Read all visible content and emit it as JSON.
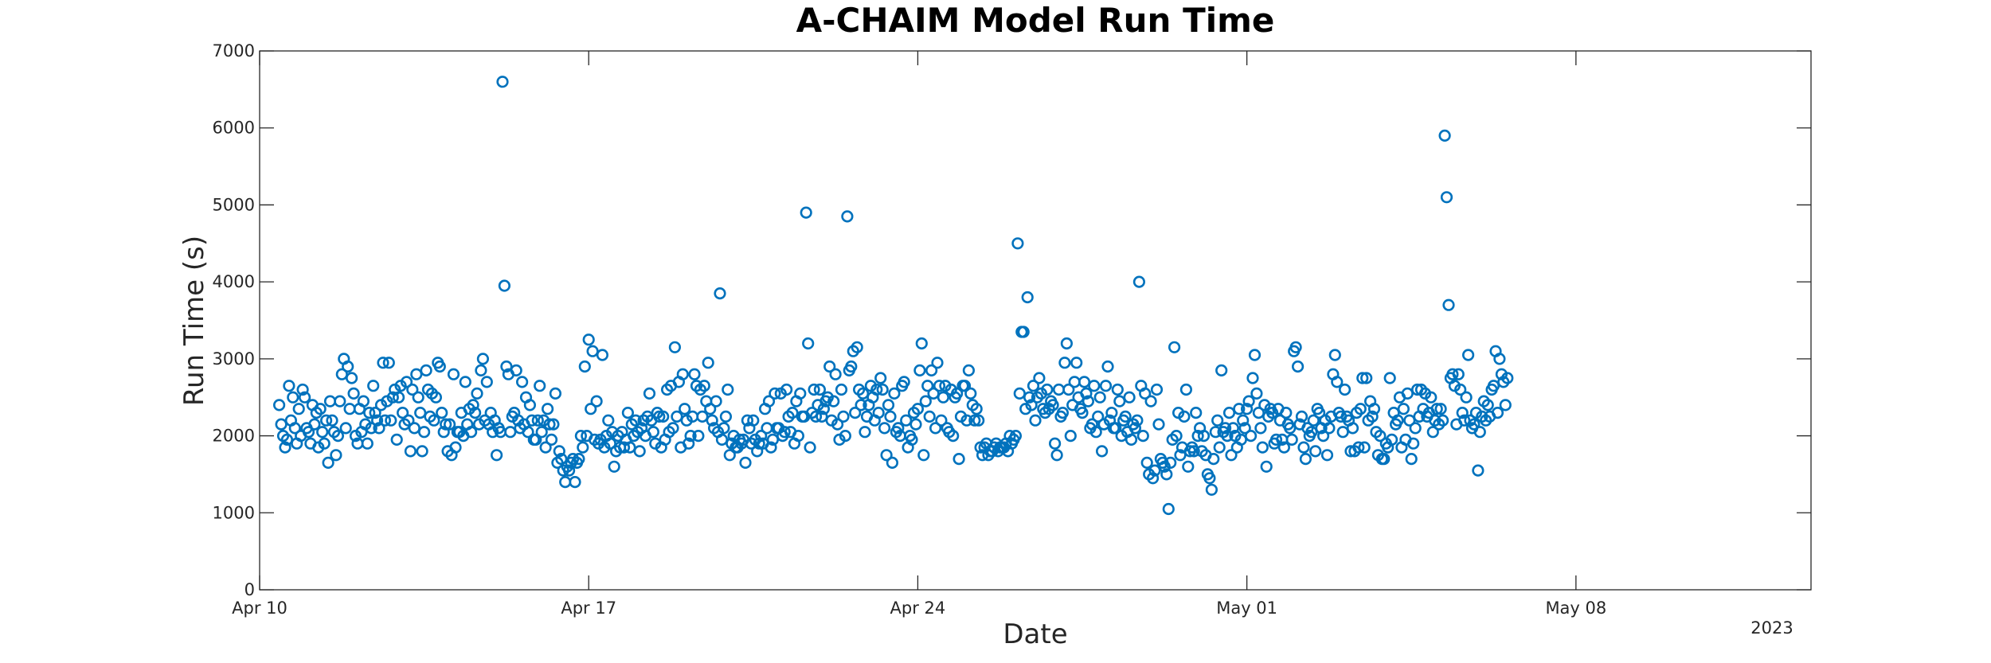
{
  "chart_data": {
    "type": "scatter",
    "title": "A-CHAIM Model Run Time",
    "xlabel": "Date",
    "ylabel": "Run Time (s)",
    "year_label": "2023",
    "xlim": [
      "2023-04-10",
      "2023-05-13"
    ],
    "ylim": [
      0,
      7000
    ],
    "x_ticks": [
      {
        "value": "2023-04-10",
        "label": "Apr 10"
      },
      {
        "value": "2023-04-17",
        "label": "Apr 17"
      },
      {
        "value": "2023-04-24",
        "label": "Apr 24"
      },
      {
        "value": "2023-05-01",
        "label": "May 01"
      },
      {
        "value": "2023-05-08",
        "label": "May 08"
      }
    ],
    "y_ticks": [
      0,
      1000,
      2000,
      3000,
      4000,
      5000,
      6000,
      7000
    ],
    "grid": false,
    "marker": "circle",
    "marker_color": "#0072BD",
    "sampling_interval_minutes": 60,
    "series": [
      {
        "x_start": "2023-04-10 10:00",
        "x_end": "2023-05-10 10:00",
        "values": [
          2400,
          2150,
          2000,
          1850,
          1950,
          2650,
          2200,
          2500,
          2100,
          1900,
          2350,
          2000,
          2600,
          2500,
          2100,
          2050,
          1900,
          2400,
          2150,
          2300,
          1850,
          2350,
          2050,
          1900,
          2200,
          1650,
          2450,
          2200,
          2050,
          1750,
          2000,
          2450,
          2800,
          3000,
          2100,
          2900,
          2350,
          2750,
          2550,
          2000,
          1900,
          2350,
          2050,
          2450,
          2150,
          1900,
          2300,
          2100,
          2650,
          2300,
          2200,
          2100,
          2400,
          2950,
          2200,
          2450,
          2950,
          2200,
          2500,
          2600,
          1950,
          2500,
          2650,
          2300,
          2150,
          2700,
          2200,
          1800,
          2600,
          2100,
          2800,
          2500,
          2300,
          1800,
          2050,
          2850,
          2600,
          2250,
          2550,
          2200,
          2500,
          2950,
          2900,
          2300,
          2050,
          2150,
          1800,
          2150,
          1750,
          2800,
          1850,
          2050,
          2050,
          2300,
          2000,
          2700,
          2150,
          2350,
          2050,
          2400,
          2300,
          2550,
          2150,
          2850,
          3000,
          2200,
          2700,
          2150,
          2300,
          2050,
          2200,
          1750,
          2100,
          2050,
          6600,
          3950,
          2900,
          2800,
          2050,
          2250,
          2300,
          2850,
          2200,
          2100,
          2700,
          2150,
          2500,
          2050,
          2400,
          2200,
          1950,
          1950,
          2200,
          2650,
          2050,
          2200,
          1850,
          2350,
          2150,
          1950,
          2150,
          2550,
          1650,
          1800,
          1700,
          1550,
          1400,
          1600,
          1550,
          1650,
          1700,
          1400,
          1650,
          1700,
          2000,
          1850,
          2900,
          2000,
          3250,
          2350,
          3100,
          1950,
          2450,
          1900,
          1950,
          3050,
          1850,
          2000,
          2200,
          1900,
          2050,
          1600,
          1800,
          2000,
          1850,
          2050,
          1850,
          1950,
          2300,
          1850,
          2150,
          2000,
          2200,
          2050,
          1800,
          2100,
          2200,
          2000,
          2250,
          2550,
          2200,
          2050,
          1900,
          2300,
          2250,
          1850,
          2250,
          1950,
          2600,
          2050,
          2650,
          2100,
          3150,
          2250,
          2700,
          1850,
          2800,
          2350,
          2200,
          1900,
          2000,
          2250,
          2800,
          2650,
          2000,
          2600,
          2250,
          2650,
          2450,
          2950,
          2350,
          2200,
          2100,
          2450,
          2050,
          3850,
          1950,
          2100,
          2250,
          2600,
          1750,
          1900,
          2000,
          1850,
          1850,
          1950,
          1900,
          1950,
          1650,
          2200,
          2100,
          1900,
          2200,
          1950,
          1800,
          1900,
          2000,
          1900,
          2350,
          2100,
          2450,
          1850,
          1950,
          2550,
          2100,
          2100,
          2550,
          2000,
          2050,
          2600,
          2250,
          2050,
          2300,
          1900,
          2450,
          2000,
          2550,
          2250,
          2250,
          4900,
          3200,
          1850,
          2300,
          2600,
          2250,
          2400,
          2600,
          2250,
          2350,
          2450,
          2500,
          2900,
          2200,
          2450,
          2800,
          2150,
          1950,
          2600,
          2250,
          2000,
          4850,
          2850,
          2900,
          3100,
          2300,
          3150,
          2600,
          2400,
          2550,
          2050,
          2250,
          2400,
          2650,
          2500,
          2200,
          2600,
          2300,
          2750,
          2600,
          2100,
          1750,
          2400,
          2250,
          1650,
          2550,
          2050,
          2100,
          2000,
          2650,
          2700,
          2200,
          1850,
          2000,
          1950,
          2300,
          2150,
          2350,
          2850,
          3200,
          1750,
          2450,
          2650,
          2250,
          2850,
          2550,
          2100,
          2950,
          2650,
          2200,
          2500,
          2650,
          2100,
          2050,
          2600,
          2000,
          2500,
          2550,
          1700,
          2250,
          2650,
          2650,
          2200,
          2850,
          2550,
          2400,
          2200,
          2350,
          2200,
          1850,
          1750,
          1850,
          1900,
          1750,
          1800,
          1800,
          1850,
          1900,
          1800,
          1850,
          1850,
          1850,
          1900,
          1800,
          2000,
          1900,
          1950,
          2000,
          4500,
          2550,
          3350,
          3350,
          2350,
          3800,
          2500,
          2400,
          2650,
          2200,
          2500,
          2750,
          2550,
          2350,
          2300,
          2600,
          2350,
          2450,
          2400,
          1900,
          1750,
          2600,
          2250,
          2300,
          2950,
          3200,
          2600,
          2000,
          2400,
          2700,
          2950,
          2500,
          2350,
          2300,
          2700,
          2550,
          2450,
          2100,
          2150,
          2650,
          2050,
          2250,
          2500,
          1800,
          2150,
          2650,
          2900,
          2200,
          2300,
          2100,
          2100,
          2600,
          2450,
          2000,
          2200,
          2250,
          2050,
          2500,
          1950,
          2150,
          2100,
          2200,
          4000,
          2650,
          2000,
          2550,
          1650,
          1500,
          2450,
          1450,
          1550,
          2600,
          2150,
          1700,
          1650,
          1600,
          1500,
          1050,
          1650,
          1950,
          3150,
          2000,
          2300,
          1750,
          1850,
          2250,
          2600,
          1600,
          1800,
          1850,
          1800,
          2300,
          2000,
          2100,
          1800,
          2000,
          1750,
          1500,
          1450,
          1300,
          1700,
          2050,
          2200,
          1850,
          2850,
          2050,
          2100,
          2000,
          2300,
          1750,
          2100,
          2000,
          1850,
          2350,
          1950,
          2200,
          2100,
          2350,
          2450,
          2000,
          2750,
          3050,
          2550,
          2300,
          2100,
          1850,
          2400,
          1600,
          2250,
          2350,
          2300,
          1900,
          1950,
          2350,
          2200,
          1950,
          1850,
          2300,
          2150,
          2100,
          1950,
          3100,
          3150,
          2900,
          2150,
          2250,
          1850,
          1700,
          2100,
          2000,
          2050,
          2200,
          1800,
          2350,
          2300,
          2100,
          2000,
          2200,
          1750,
          2100,
          2250,
          2800,
          3050,
          2700,
          2300,
          2250,
          2050,
          2600,
          2250,
          2200,
          1800,
          2100,
          1800,
          2300,
          1850,
          2350,
          2750,
          1850,
          2750,
          2200,
          2450,
          2250,
          2350,
          2050,
          1750,
          2000,
          1700,
          1700,
          1900,
          1850,
          2750,
          1950,
          2300,
          2150,
          2200,
          2500,
          1850,
          2350,
          1950,
          2550,
          2200,
          1700,
          1900,
          2100,
          2600,
          2250,
          2600,
          2350,
          2550,
          2250,
          2300,
          2500,
          2050,
          2200,
          2350,
          2150,
          2350,
          2200,
          5900,
          5100,
          3700,
          2750,
          2800,
          2650,
          2150,
          2800,
          2600,
          2300,
          2200,
          2500,
          3050,
          2200,
          2100,
          2150,
          2300,
          1550,
          2050,
          2250,
          2450,
          2200,
          2400,
          2250,
          2600,
          2650,
          3100,
          2300,
          3000,
          2800,
          2700,
          2400,
          2750
        ]
      }
    ]
  }
}
